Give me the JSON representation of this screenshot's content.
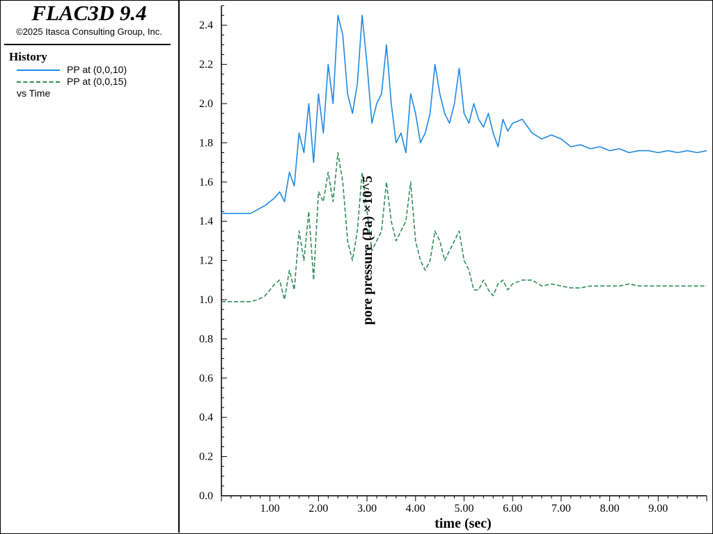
{
  "app": {
    "title": "FLAC3D 9.4",
    "copyright": "©2025 Itasca Consulting Group, Inc."
  },
  "legend": {
    "heading": "History",
    "entries": [
      {
        "label": "PP at (0,0,10)",
        "color": "#1e88e5",
        "style": "solid"
      },
      {
        "label": "PP at (0,0,15)",
        "color": "#2e8b57",
        "style": "dashed"
      }
    ],
    "vs_label": "vs Time"
  },
  "chart_data": {
    "type": "line",
    "xlabel": "time (sec)",
    "ylabel": "pore pressure (Pa) ×10^5",
    "xlim": [
      0,
      10
    ],
    "ylim": [
      0,
      2.5
    ],
    "x_ticks": [
      "1.00",
      "2.00",
      "3.00",
      "4.00",
      "5.00",
      "6.00",
      "7.00",
      "8.00",
      "9.00"
    ],
    "y_ticks": [
      "0.0",
      "0.2",
      "0.4",
      "0.6",
      "0.8",
      "1.0",
      "1.2",
      "1.4",
      "1.6",
      "1.8",
      "2.0",
      "2.2",
      "2.4"
    ],
    "grid": false,
    "series": [
      {
        "name": "PP at (0,0,10)",
        "color": "#1e88e5",
        "style": "solid",
        "x": [
          0,
          0.3,
          0.6,
          0.75,
          0.9,
          1.0,
          1.1,
          1.2,
          1.3,
          1.4,
          1.5,
          1.6,
          1.7,
          1.8,
          1.9,
          2.0,
          2.1,
          2.2,
          2.3,
          2.4,
          2.5,
          2.6,
          2.7,
          2.8,
          2.9,
          3.0,
          3.1,
          3.2,
          3.3,
          3.4,
          3.5,
          3.6,
          3.7,
          3.8,
          3.9,
          4.0,
          4.1,
          4.2,
          4.3,
          4.4,
          4.5,
          4.6,
          4.7,
          4.8,
          4.9,
          5.0,
          5.1,
          5.2,
          5.3,
          5.4,
          5.5,
          5.6,
          5.7,
          5.8,
          5.9,
          6.0,
          6.2,
          6.4,
          6.6,
          6.8,
          7.0,
          7.2,
          7.4,
          7.6,
          7.8,
          8.0,
          8.2,
          8.4,
          8.6,
          8.8,
          9.0,
          9.2,
          9.4,
          9.6,
          9.8,
          10.0
        ],
        "values": [
          1.44,
          1.44,
          1.44,
          1.46,
          1.48,
          1.5,
          1.52,
          1.55,
          1.5,
          1.65,
          1.58,
          1.85,
          1.75,
          2.0,
          1.7,
          2.05,
          1.85,
          2.2,
          2.0,
          2.45,
          2.35,
          2.05,
          1.95,
          2.1,
          2.45,
          2.2,
          1.9,
          2.0,
          2.05,
          2.3,
          2.0,
          1.8,
          1.85,
          1.75,
          2.05,
          1.95,
          1.8,
          1.85,
          1.95,
          2.2,
          2.05,
          1.95,
          1.9,
          2.0,
          2.18,
          1.95,
          1.9,
          2.0,
          1.92,
          1.88,
          1.95,
          1.85,
          1.78,
          1.92,
          1.86,
          1.9,
          1.92,
          1.85,
          1.82,
          1.84,
          1.82,
          1.78,
          1.79,
          1.77,
          1.78,
          1.76,
          1.77,
          1.75,
          1.76,
          1.76,
          1.75,
          1.76,
          1.75,
          1.76,
          1.75,
          1.76
        ]
      },
      {
        "name": "PP at (0,0,15)",
        "color": "#2e8b57",
        "style": "dashed",
        "x": [
          0,
          0.3,
          0.6,
          0.75,
          0.9,
          1.0,
          1.1,
          1.2,
          1.3,
          1.4,
          1.5,
          1.6,
          1.7,
          1.8,
          1.9,
          2.0,
          2.1,
          2.2,
          2.3,
          2.4,
          2.5,
          2.6,
          2.7,
          2.8,
          2.9,
          3.0,
          3.1,
          3.2,
          3.3,
          3.4,
          3.5,
          3.6,
          3.7,
          3.8,
          3.9,
          4.0,
          4.1,
          4.2,
          4.3,
          4.4,
          4.5,
          4.6,
          4.7,
          4.8,
          4.9,
          5.0,
          5.1,
          5.2,
          5.3,
          5.4,
          5.5,
          5.6,
          5.7,
          5.8,
          5.9,
          6.0,
          6.2,
          6.4,
          6.6,
          6.8,
          7.0,
          7.2,
          7.4,
          7.6,
          7.8,
          8.0,
          8.2,
          8.4,
          8.6,
          8.8,
          9.0,
          9.2,
          9.4,
          9.6,
          9.8,
          10.0
        ],
        "values": [
          0.99,
          0.99,
          0.99,
          1.0,
          1.02,
          1.05,
          1.08,
          1.1,
          1.0,
          1.15,
          1.05,
          1.35,
          1.2,
          1.45,
          1.1,
          1.55,
          1.5,
          1.65,
          1.5,
          1.75,
          1.6,
          1.3,
          1.2,
          1.35,
          1.65,
          1.45,
          1.25,
          1.3,
          1.35,
          1.6,
          1.4,
          1.3,
          1.35,
          1.4,
          1.6,
          1.3,
          1.2,
          1.15,
          1.2,
          1.35,
          1.3,
          1.2,
          1.25,
          1.3,
          1.35,
          1.2,
          1.15,
          1.05,
          1.05,
          1.1,
          1.05,
          1.02,
          1.08,
          1.1,
          1.05,
          1.08,
          1.1,
          1.1,
          1.07,
          1.08,
          1.07,
          1.06,
          1.06,
          1.07,
          1.07,
          1.07,
          1.07,
          1.08,
          1.07,
          1.07,
          1.07,
          1.07,
          1.07,
          1.07,
          1.07,
          1.07
        ]
      }
    ]
  }
}
